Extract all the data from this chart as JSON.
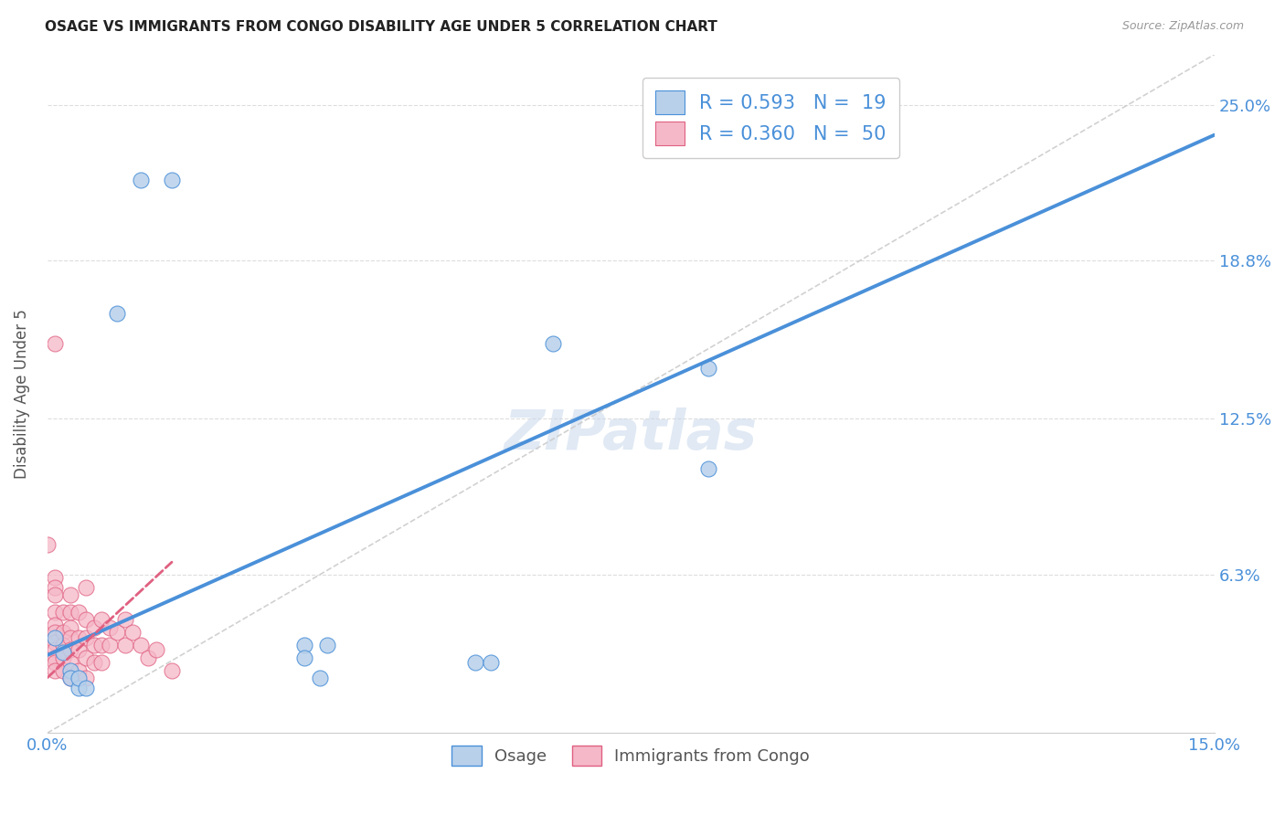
{
  "title": "OSAGE VS IMMIGRANTS FROM CONGO DISABILITY AGE UNDER 5 CORRELATION CHART",
  "source": "Source: ZipAtlas.com",
  "ylabel": "Disability Age Under 5",
  "xmin": 0.0,
  "xmax": 0.15,
  "ymin": 0.0,
  "ymax": 0.27,
  "yticks": [
    0.063,
    0.125,
    0.188,
    0.25
  ],
  "ytick_labels": [
    "6.3%",
    "12.5%",
    "18.8%",
    "25.0%"
  ],
  "xticks": [
    0.0,
    0.03,
    0.06,
    0.09,
    0.12,
    0.15
  ],
  "xtick_labels": [
    "0.0%",
    "",
    "",
    "",
    "",
    "15.0%"
  ],
  "legend_blue_r": "R = 0.593",
  "legend_blue_n": "N =  19",
  "legend_pink_r": "R = 0.360",
  "legend_pink_n": "N =  50",
  "blue_color": "#b8d0ea",
  "pink_color": "#f5b8c8",
  "blue_line_color": "#4a90d9",
  "pink_line_color": "#e06080",
  "diag_line_color": "#cccccc",
  "scatter_blue": [
    [
      0.012,
      0.22
    ],
    [
      0.016,
      0.22
    ],
    [
      0.009,
      0.167
    ],
    [
      0.001,
      0.038
    ],
    [
      0.002,
      0.032
    ],
    [
      0.003,
      0.025
    ],
    [
      0.003,
      0.022
    ],
    [
      0.004,
      0.018
    ],
    [
      0.004,
      0.022
    ],
    [
      0.005,
      0.018
    ],
    [
      0.033,
      0.035
    ],
    [
      0.036,
      0.035
    ],
    [
      0.033,
      0.03
    ],
    [
      0.035,
      0.022
    ],
    [
      0.055,
      0.028
    ],
    [
      0.057,
      0.028
    ],
    [
      0.065,
      0.155
    ],
    [
      0.085,
      0.145
    ],
    [
      0.085,
      0.105
    ]
  ],
  "scatter_pink": [
    [
      0.0,
      0.075
    ],
    [
      0.001,
      0.155
    ],
    [
      0.001,
      0.062
    ],
    [
      0.001,
      0.058
    ],
    [
      0.001,
      0.055
    ],
    [
      0.001,
      0.048
    ],
    [
      0.001,
      0.043
    ],
    [
      0.001,
      0.04
    ],
    [
      0.001,
      0.036
    ],
    [
      0.001,
      0.033
    ],
    [
      0.001,
      0.03
    ],
    [
      0.001,
      0.028
    ],
    [
      0.001,
      0.025
    ],
    [
      0.002,
      0.048
    ],
    [
      0.002,
      0.04
    ],
    [
      0.002,
      0.035
    ],
    [
      0.002,
      0.03
    ],
    [
      0.002,
      0.025
    ],
    [
      0.003,
      0.055
    ],
    [
      0.003,
      0.048
    ],
    [
      0.003,
      0.042
    ],
    [
      0.003,
      0.038
    ],
    [
      0.003,
      0.033
    ],
    [
      0.003,
      0.028
    ],
    [
      0.003,
      0.022
    ],
    [
      0.004,
      0.048
    ],
    [
      0.004,
      0.038
    ],
    [
      0.004,
      0.033
    ],
    [
      0.004,
      0.025
    ],
    [
      0.005,
      0.058
    ],
    [
      0.005,
      0.045
    ],
    [
      0.005,
      0.038
    ],
    [
      0.005,
      0.03
    ],
    [
      0.005,
      0.022
    ],
    [
      0.006,
      0.042
    ],
    [
      0.006,
      0.035
    ],
    [
      0.006,
      0.028
    ],
    [
      0.007,
      0.045
    ],
    [
      0.007,
      0.035
    ],
    [
      0.007,
      0.028
    ],
    [
      0.008,
      0.042
    ],
    [
      0.008,
      0.035
    ],
    [
      0.009,
      0.04
    ],
    [
      0.01,
      0.045
    ],
    [
      0.01,
      0.035
    ],
    [
      0.011,
      0.04
    ],
    [
      0.012,
      0.035
    ],
    [
      0.013,
      0.03
    ],
    [
      0.014,
      0.033
    ],
    [
      0.016,
      0.025
    ]
  ],
  "blue_regression": [
    0.0,
    0.15,
    0.031,
    0.238
  ],
  "pink_regression": [
    0.0,
    0.016,
    0.022,
    0.068
  ],
  "background_color": "#ffffff",
  "grid_color": "#dddddd"
}
